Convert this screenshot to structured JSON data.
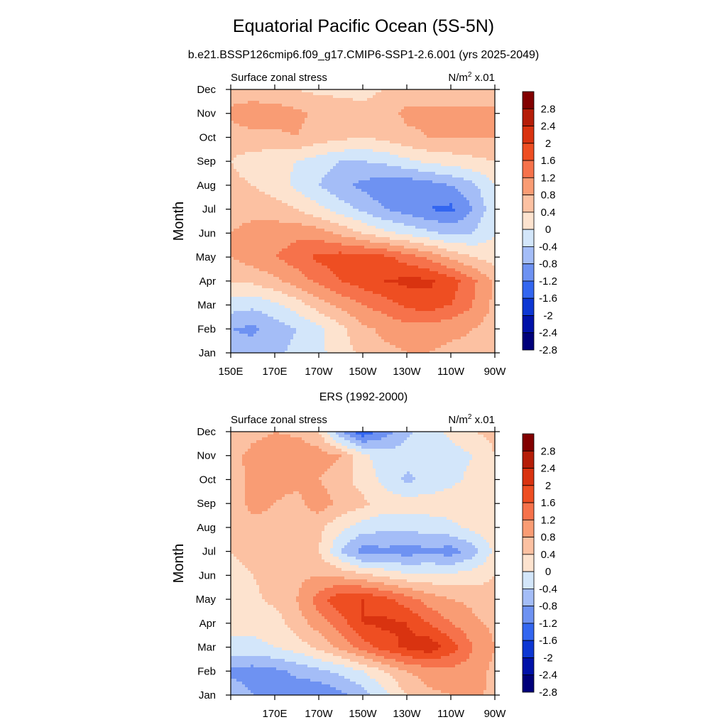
{
  "figure": {
    "title": "Equatorial Pacific Ocean (5S-5N)",
    "subtitle": "b.e21.BSSP126cmip6.f09_g17.CMIP6-SSP1-2.6.001 (yrs 2025-2049)"
  },
  "chart_data": [
    {
      "type": "heatmap",
      "panel": "model",
      "left_label": "Surface zonal stress",
      "right_label_base": "N/m",
      "right_label_sup": "2",
      "right_label_tail": " x.01",
      "ylabel": "Month",
      "xlabel": "",
      "x_ticks": [
        "150E",
        "170E",
        "170W",
        "150W",
        "130W",
        "110W",
        "90W"
      ],
      "y_ticks": [
        "Jan",
        "Feb",
        "Mar",
        "Apr",
        "May",
        "Jun",
        "Jul",
        "Aug",
        "Sep",
        "Oct",
        "Nov",
        "Dec"
      ],
      "x_range_deg_east": [
        150,
        270
      ],
      "y_range_month": [
        1,
        12
      ],
      "contour_levels": [
        -2.8,
        -2.4,
        -2,
        -1.6,
        -1.2,
        -0.8,
        -0.4,
        0,
        0.4,
        0.8,
        1.2,
        1.6,
        2,
        2.4,
        2.8
      ],
      "colorbar_labels": [
        "2.8",
        "2.4",
        "2",
        "1.6",
        "1.2",
        "0.8",
        "0.4",
        "0",
        "-0.4",
        "-0.8",
        "-1.2",
        "-1.6",
        "-2",
        "-2.4",
        "-2.8"
      ],
      "lon": [
        150,
        160,
        170,
        180,
        190,
        200,
        210,
        220,
        230,
        240,
        250,
        260,
        270
      ],
      "months": [
        1,
        2,
        3,
        4,
        5,
        6,
        7,
        8,
        9,
        10,
        11,
        12
      ],
      "z": [
        [
          -0.9,
          -1.0,
          -0.9,
          -0.7,
          -0.5,
          -0.2,
          0.1,
          0.3,
          0.4,
          0.4,
          0.3,
          0.3,
          0.1
        ],
        [
          -1.2,
          -1.3,
          -1.0,
          -0.8,
          -0.5,
          -0.1,
          0.3,
          0.5,
          0.6,
          0.6,
          0.5,
          0.4,
          0.2
        ],
        [
          -0.6,
          -0.7,
          -0.5,
          -0.2,
          0.2,
          0.5,
          0.8,
          1.0,
          1.3,
          1.4,
          1.2,
          0.8,
          0.3
        ],
        [
          0.0,
          0.1,
          0.3,
          0.6,
          0.9,
          1.2,
          1.4,
          1.6,
          1.7,
          1.7,
          1.4,
          0.9,
          0.3
        ],
        [
          0.4,
          0.6,
          0.8,
          1.0,
          1.3,
          1.4,
          1.4,
          1.3,
          1.0,
          0.7,
          0.3,
          0.0,
          -0.2
        ],
        [
          0.4,
          0.5,
          0.6,
          0.7,
          0.6,
          0.3,
          0.0,
          -0.3,
          -0.5,
          -0.7,
          -0.9,
          -0.8,
          -0.4
        ],
        [
          0.3,
          0.3,
          0.2,
          0.0,
          -0.3,
          -0.6,
          -0.9,
          -1.2,
          -1.4,
          -1.6,
          -1.7,
          -1.2,
          -0.5
        ],
        [
          0.1,
          0.0,
          -0.2,
          -0.5,
          -0.8,
          -1.1,
          -1.3,
          -1.5,
          -1.5,
          -1.4,
          -1.2,
          -0.9,
          -0.4
        ],
        [
          0.0,
          -0.2,
          -0.3,
          -0.4,
          -0.6,
          -0.8,
          -0.8,
          -0.7,
          -0.5,
          -0.3,
          -0.2,
          -0.1,
          0.0
        ],
        [
          0.2,
          0.3,
          0.3,
          0.4,
          0.2,
          0.1,
          0.0,
          0.1,
          0.3,
          0.4,
          0.4,
          0.4,
          0.4
        ],
        [
          0.5,
          0.6,
          0.6,
          0.5,
          0.3,
          0.2,
          0.1,
          0.2,
          0.5,
          0.5,
          0.5,
          0.5,
          0.5
        ],
        [
          0.2,
          0.2,
          0.1,
          0.0,
          -0.1,
          -0.1,
          -0.1,
          0.0,
          0.2,
          0.2,
          0.2,
          0.2,
          0.2
        ]
      ]
    },
    {
      "type": "heatmap",
      "panel": "observed",
      "panel_title": "ERS (1992-2000)",
      "left_label": "Surface zonal stress",
      "right_label_base": "N/m",
      "right_label_sup": "2",
      "right_label_tail": " x.01",
      "ylabel": "Month",
      "xlabel": "",
      "x_ticks": [
        "",
        "170E",
        "170W",
        "150W",
        "130W",
        "110W",
        "90W"
      ],
      "y_ticks": [
        "Jan",
        "Feb",
        "Mar",
        "Apr",
        "May",
        "Jun",
        "Jul",
        "Aug",
        "Sep",
        "Oct",
        "Nov",
        "Dec"
      ],
      "x_range_deg_east": [
        150,
        270
      ],
      "y_range_month": [
        1,
        12
      ],
      "contour_levels": [
        -2.8,
        -2.4,
        -2,
        -1.6,
        -1.2,
        -0.8,
        -0.4,
        0,
        0.4,
        0.8,
        1.2,
        1.6,
        2,
        2.4,
        2.8
      ],
      "colorbar_labels": [
        "2.8",
        "2.4",
        "2",
        "1.6",
        "1.2",
        "0.8",
        "0.4",
        "0",
        "-0.4",
        "-0.8",
        "-1.2",
        "-1.6",
        "-2",
        "-2.4",
        "-2.8"
      ],
      "lon": [
        150,
        160,
        170,
        180,
        190,
        200,
        210,
        220,
        230,
        240,
        250,
        260,
        270
      ],
      "months": [
        1,
        2,
        3,
        4,
        5,
        6,
        7,
        8,
        9,
        10,
        11,
        12
      ],
      "z": [
        [
          -0.9,
          -1.2,
          -1.4,
          -1.5,
          -1.6,
          -1.3,
          -1.0,
          -0.5,
          0.0,
          0.3,
          0.4,
          0.5,
          0.3
        ],
        [
          -1.3,
          -1.4,
          -1.3,
          -1.1,
          -0.9,
          -0.7,
          -0.4,
          0.0,
          0.4,
          0.6,
          0.7,
          0.6,
          0.3
        ],
        [
          -0.5,
          -0.5,
          -0.4,
          -0.2,
          0.1,
          0.5,
          1.0,
          1.4,
          1.7,
          1.9,
          1.4,
          0.8,
          0.4
        ],
        [
          -0.3,
          -0.3,
          -0.2,
          0.2,
          0.6,
          1.0,
          1.6,
          1.7,
          1.6,
          1.2,
          0.8,
          0.5,
          0.3
        ],
        [
          -0.2,
          -0.1,
          0.1,
          0.4,
          1.0,
          1.5,
          1.6,
          1.3,
          1.0,
          0.6,
          0.4,
          0.3,
          0.1
        ],
        [
          -0.2,
          0.0,
          0.2,
          0.3,
          0.4,
          0.3,
          0.1,
          -0.1,
          -0.3,
          -0.3,
          -0.3,
          -0.2,
          0.0
        ],
        [
          0.0,
          0.2,
          0.3,
          0.3,
          0.0,
          -0.8,
          -1.4,
          -1.3,
          -1.4,
          -1.3,
          -1.4,
          -1.0,
          -0.3
        ],
        [
          0.1,
          0.3,
          0.3,
          0.2,
          0.1,
          -0.3,
          -0.6,
          -0.7,
          -0.7,
          -0.6,
          -0.5,
          -0.3,
          -0.1
        ],
        [
          0.2,
          0.5,
          0.4,
          0.3,
          0.6,
          0.3,
          0.1,
          -0.2,
          -0.2,
          -0.2,
          -0.2,
          -0.1,
          0.0
        ],
        [
          0.2,
          0.5,
          0.5,
          0.5,
          0.4,
          0.2,
          -0.2,
          -0.5,
          -0.9,
          -0.7,
          -0.5,
          -0.3,
          0.0
        ],
        [
          0.3,
          0.5,
          0.6,
          0.8,
          0.6,
          0.4,
          -0.3,
          -0.6,
          -0.6,
          -0.5,
          -0.6,
          -0.4,
          0.0
        ],
        [
          0.1,
          0.3,
          0.4,
          0.3,
          0.0,
          -1.2,
          -1.9,
          -1.4,
          -0.9,
          -0.6,
          -0.3,
          0.0,
          0.1
        ]
      ]
    }
  ],
  "colors": {
    "palette": [
      "#00007a",
      "#0011a8",
      "#0d37d3",
      "#3366f0",
      "#6e92f2",
      "#a4bdf7",
      "#d3e6fa",
      "#fde3cf",
      "#fcc1a2",
      "#f99c74",
      "#f6724b",
      "#ee4e22",
      "#d93310",
      "#b51d08",
      "#820000"
    ]
  }
}
